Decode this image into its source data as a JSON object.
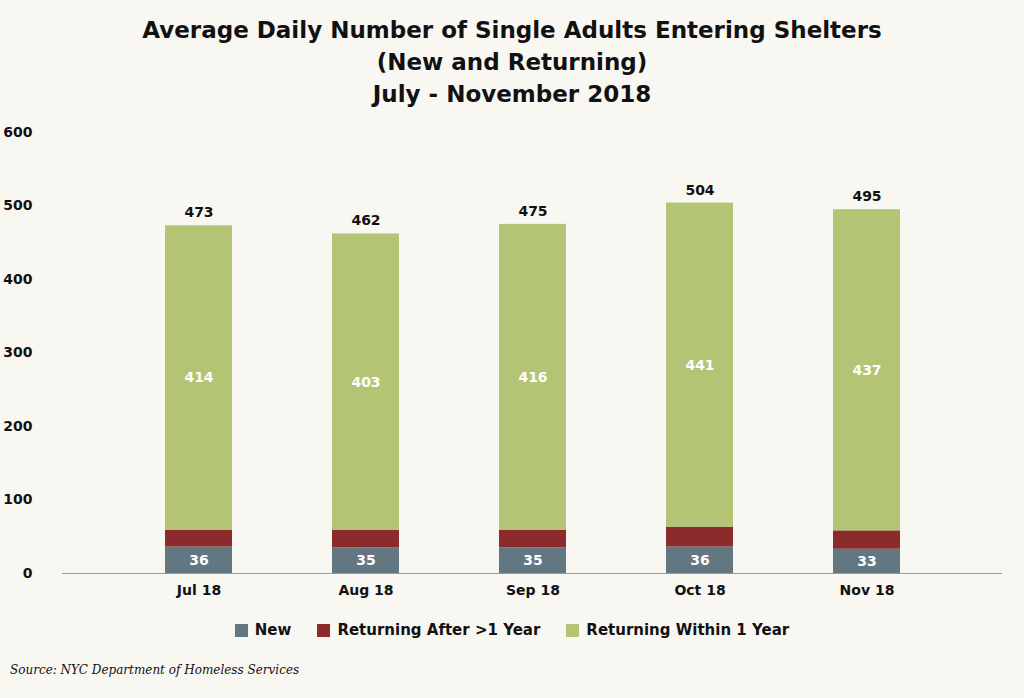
{
  "chart_data": {
    "type": "bar",
    "title": "Average Daily Number of Single Adults Entering Shelters\n(New and Returning)",
    "subtitle": "July - November 2018",
    "source": "Source: NYC Department of Homeless Services",
    "categories": [
      "Jul 18",
      "Aug 18",
      "Sep 18",
      "Oct 18",
      "Nov 18"
    ],
    "series": [
      {
        "name": "New",
        "color": "#637782",
        "values": [
          36,
          35,
          35,
          36,
          33
        ],
        "data_labels": true
      },
      {
        "name": "Returning After >1 Year",
        "color": "#8b2b2b",
        "values": [
          23,
          24,
          24,
          27,
          25
        ],
        "data_labels": false
      },
      {
        "name": "Returning Within 1 Year",
        "color": "#b3c574",
        "values": [
          414,
          403,
          416,
          441,
          437
        ],
        "data_labels": true
      }
    ],
    "totals": [
      473,
      462,
      475,
      504,
      495
    ],
    "stacked": true,
    "ylim": [
      0,
      600
    ],
    "yticks": [
      0,
      100,
      200,
      300,
      400,
      500,
      600
    ],
    "grid": false,
    "legend": "bottom"
  }
}
